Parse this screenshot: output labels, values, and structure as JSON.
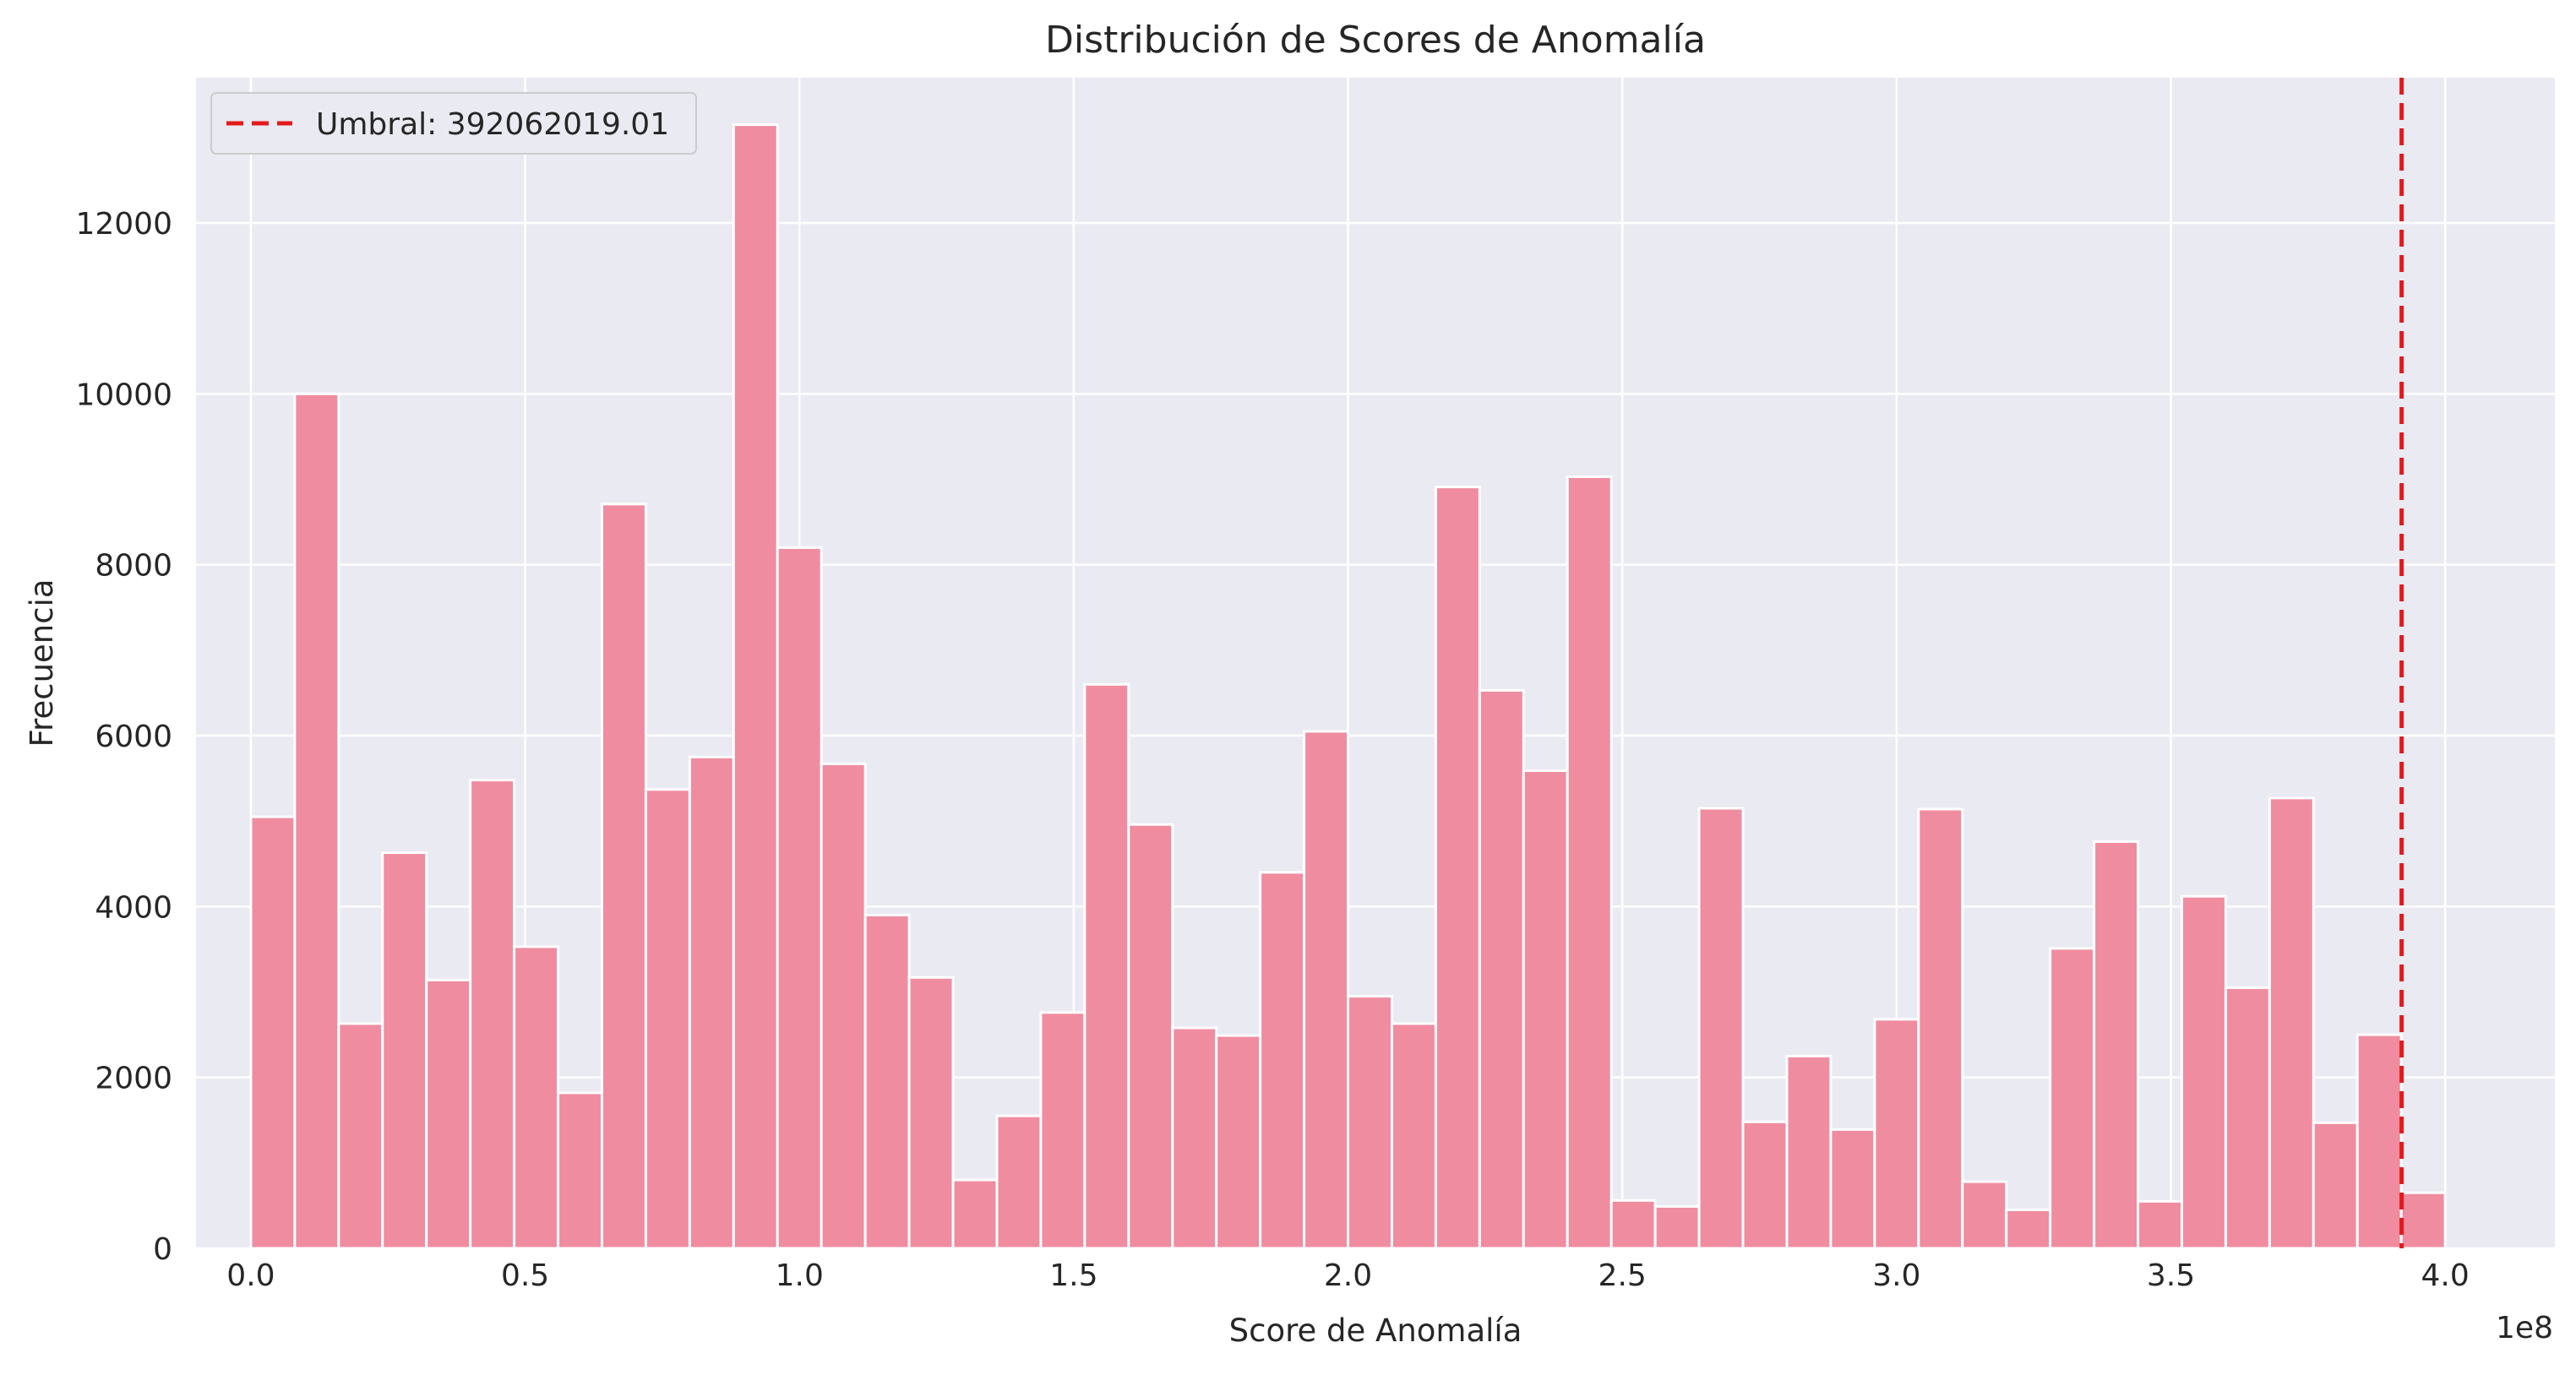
{
  "chart_data": {
    "type": "bar",
    "title": "Distribución de Scores de Anomalía",
    "xlabel": "Score de Anomalía",
    "ylabel": "Frecuencia",
    "x_offset_label": "1e8",
    "x_scale": 100000000,
    "xlim": [
      -0.1,
      4.2
    ],
    "ylim": [
      0,
      13700
    ],
    "grid": true,
    "legend_position": "top-left",
    "x_ticks": [
      0.0,
      0.5,
      1.0,
      1.5,
      2.0,
      2.5,
      3.0,
      3.5,
      4.0
    ],
    "x_tick_labels": [
      "0.0",
      "0.5",
      "1.0",
      "1.5",
      "2.0",
      "2.5",
      "3.0",
      "3.5",
      "4.0"
    ],
    "y_ticks": [
      0,
      2000,
      4000,
      6000,
      8000,
      10000,
      12000
    ],
    "y_tick_labels": [
      "0",
      "2000",
      "4000",
      "6000",
      "8000",
      "10000",
      "12000"
    ],
    "bin_start": 0.0,
    "bin_width": 0.08,
    "values": [
      5050,
      10000,
      2630,
      4630,
      3140,
      5480,
      3530,
      1820,
      8710,
      5370,
      5750,
      13150,
      8200,
      5670,
      3900,
      3170,
      800,
      1550,
      2760,
      6600,
      4960,
      2580,
      2490,
      4400,
      6050,
      2950,
      2630,
      8910,
      6530,
      5590,
      9030,
      560,
      490,
      5150,
      1480,
      2250,
      1390,
      2680,
      5140,
      780,
      450,
      3510,
      4760,
      550,
      4120,
      3050,
      5270,
      1470,
      2500,
      650
    ],
    "threshold": {
      "value": 3.9206,
      "label": "Umbral: 392062019.01",
      "color": "#e31a1c"
    },
    "colors": {
      "bar_fill": "#f08ca0",
      "bar_edge": "#ffffff",
      "plot_bg": "#eaeaf2",
      "grid": "#ffffff"
    }
  }
}
